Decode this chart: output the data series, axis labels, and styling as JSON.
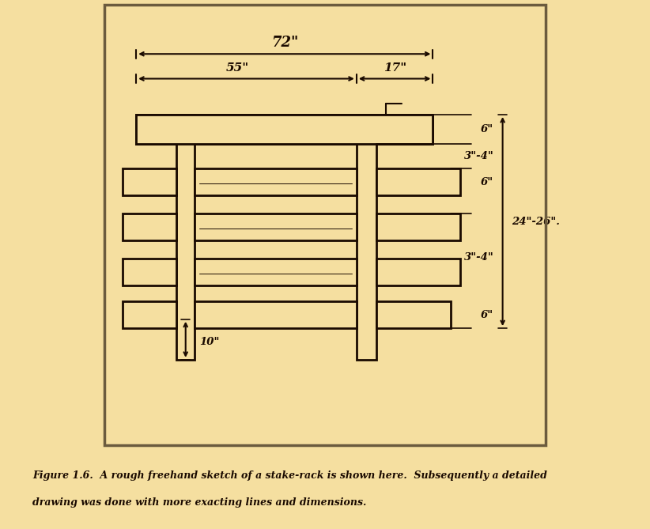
{
  "bg_color": "#F5DFA0",
  "border_color": "#6B5B3E",
  "line_color": "#1A0A00",
  "text_color": "#1A0A00",
  "fig_width": 8.22,
  "fig_height": 6.69,
  "caption_line1": "Figure 1.6.  A rough freehand sketch of a stake-rack is shown here.  Subsequently a detailed",
  "caption_line2": "drawing was done with more exacting lines and dimensions.",
  "font_size_large": 13,
  "font_size_med": 11,
  "font_size_small": 9.5,
  "font_size_caption": 9
}
